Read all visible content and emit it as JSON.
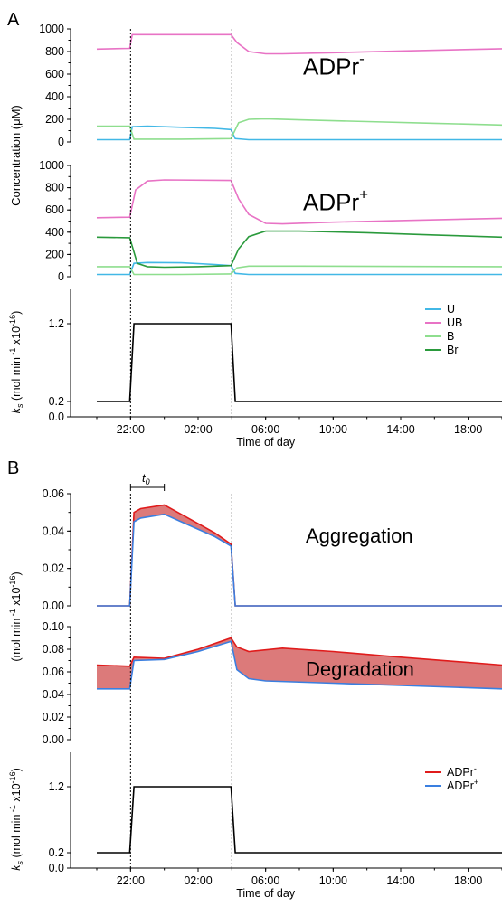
{
  "figure": {
    "panel_labels": [
      "A",
      "B"
    ],
    "x_ticks": [
      "22:00",
      "02:00",
      "06:00",
      "10:00",
      "14:00",
      "18:00"
    ],
    "x_label": "Time of day",
    "x_tick_hours": [
      22,
      26,
      30,
      34,
      38,
      42
    ],
    "x_range_hours": [
      20,
      44
    ],
    "light_on_hours": [
      22,
      28
    ]
  },
  "chart_data": [
    {
      "id": "A-ADPr-minus",
      "type": "line",
      "panel": "A",
      "annotation": {
        "base": "ADPr",
        "sup": "-"
      },
      "ylabel": "Concentration (μM)",
      "ylim": [
        0,
        1000
      ],
      "yticks": [
        0,
        200,
        400,
        600,
        800,
        1000
      ],
      "x_unit": "hour of day (values > 24 are the next day)",
      "series": [
        {
          "name": "U",
          "color": "#42b8e6",
          "points": [
            [
              20,
              20
            ],
            [
              21.95,
              20
            ],
            [
              22.1,
              135
            ],
            [
              23,
              140
            ],
            [
              25,
              130
            ],
            [
              27,
              120
            ],
            [
              27.95,
              110
            ],
            [
              28.2,
              30
            ],
            [
              29,
              20
            ],
            [
              32,
              20
            ],
            [
              38,
              20
            ],
            [
              44,
              20
            ]
          ]
        },
        {
          "name": "UB",
          "color": "#e873c5",
          "points": [
            [
              20,
              822
            ],
            [
              21.95,
              828
            ],
            [
              22.1,
              950
            ],
            [
              25,
              950
            ],
            [
              27.95,
              950
            ],
            [
              28.3,
              880
            ],
            [
              29,
              800
            ],
            [
              30,
              780
            ],
            [
              31,
              780
            ],
            [
              34,
              790
            ],
            [
              38,
              805
            ],
            [
              44,
              825
            ]
          ]
        },
        {
          "name": "B",
          "color": "#8ede8e",
          "points": [
            [
              20,
              140
            ],
            [
              21.95,
              140
            ],
            [
              22.2,
              25
            ],
            [
              25,
              25
            ],
            [
              27.95,
              30
            ],
            [
              28.4,
              170
            ],
            [
              29,
              200
            ],
            [
              30,
              205
            ],
            [
              32,
              195
            ],
            [
              36,
              180
            ],
            [
              40,
              165
            ],
            [
              44,
              150
            ]
          ]
        }
      ]
    },
    {
      "id": "A-ADPr-plus",
      "type": "line",
      "panel": "A",
      "annotation": {
        "base": "ADPr",
        "sup": "+"
      },
      "ylabel": "",
      "ylim": [
        0,
        1000
      ],
      "yticks": [
        0,
        200,
        400,
        600,
        800,
        1000
      ],
      "series": [
        {
          "name": "U",
          "color": "#42b8e6",
          "points": [
            [
              20,
              20
            ],
            [
              21.95,
              20
            ],
            [
              22.2,
              120
            ],
            [
              23,
              128
            ],
            [
              25,
              125
            ],
            [
              27,
              110
            ],
            [
              27.95,
              100
            ],
            [
              28.2,
              30
            ],
            [
              29,
              20
            ],
            [
              44,
              20
            ]
          ]
        },
        {
          "name": "UB",
          "color": "#e873c5",
          "points": [
            [
              20,
              530
            ],
            [
              21.95,
              535
            ],
            [
              22.3,
              780
            ],
            [
              23,
              860
            ],
            [
              24,
              870
            ],
            [
              27.95,
              865
            ],
            [
              28.4,
              700
            ],
            [
              29,
              560
            ],
            [
              30,
              480
            ],
            [
              31,
              475
            ],
            [
              34,
              490
            ],
            [
              38,
              505
            ],
            [
              44,
              525
            ]
          ]
        },
        {
          "name": "B",
          "color": "#8ede8e",
          "points": [
            [
              20,
              90
            ],
            [
              21.95,
              90
            ],
            [
              22.2,
              20
            ],
            [
              25,
              20
            ],
            [
              27.95,
              25
            ],
            [
              28.3,
              80
            ],
            [
              29,
              95
            ],
            [
              32,
              95
            ],
            [
              44,
              90
            ]
          ]
        },
        {
          "name": "Br",
          "color": "#2a9a3c",
          "points": [
            [
              20,
              355
            ],
            [
              21.95,
              350
            ],
            [
              22.4,
              120
            ],
            [
              23,
              90
            ],
            [
              24,
              85
            ],
            [
              26,
              90
            ],
            [
              27.95,
              100
            ],
            [
              28.4,
              250
            ],
            [
              29,
              360
            ],
            [
              30,
              410
            ],
            [
              32,
              410
            ],
            [
              36,
              395
            ],
            [
              40,
              375
            ],
            [
              44,
              355
            ]
          ]
        }
      ]
    },
    {
      "id": "A-ks",
      "type": "line",
      "panel": "A",
      "ylabel": "k_s (mol min^-1 x10^-16)",
      "yticks": [
        0.0,
        0.2,
        1.2
      ],
      "ytick_labels": [
        "0.0",
        "0.2",
        "1.2"
      ],
      "ylim": [
        0,
        1.35
      ],
      "legend": {
        "placement": "right",
        "entries": [
          "U",
          "UB",
          "B",
          "Br"
        ]
      },
      "series": [
        {
          "name": "k_s",
          "color": "#000000",
          "points": [
            [
              20,
              0.2
            ],
            [
              21.95,
              0.2
            ],
            [
              22.2,
              1.2
            ],
            [
              27.95,
              1.2
            ],
            [
              28.2,
              0.2
            ],
            [
              44,
              0.2
            ]
          ]
        }
      ]
    },
    {
      "id": "B-aggregation",
      "type": "area",
      "panel": "B",
      "annotation": "Aggregation",
      "bracket_label": "t0",
      "bracket_hours": [
        22,
        24
      ],
      "ylim": [
        0,
        0.06
      ],
      "yticks": [
        0.0,
        0.02,
        0.04,
        0.06
      ],
      "ytick_labels": [
        "0.00",
        "0.02",
        "0.04",
        "0.06"
      ],
      "series": [
        {
          "name": "ADPr-",
          "color": "#e01b1b",
          "points": [
            [
              20,
              0
            ],
            [
              21.95,
              0
            ],
            [
              22.2,
              0.05
            ],
            [
              22.6,
              0.052
            ],
            [
              24,
              0.054
            ],
            [
              25,
              0.049
            ],
            [
              27,
              0.039
            ],
            [
              27.95,
              0.033
            ],
            [
              28.2,
              0
            ],
            [
              44,
              0
            ]
          ]
        },
        {
          "name": "ADPr+",
          "color": "#3a7fe0",
          "points": [
            [
              20,
              0
            ],
            [
              21.95,
              0
            ],
            [
              22.2,
              0.045
            ],
            [
              22.6,
              0.047
            ],
            [
              24,
              0.049
            ],
            [
              25,
              0.045
            ],
            [
              27,
              0.037
            ],
            [
              27.95,
              0.032
            ],
            [
              28.2,
              0
            ],
            [
              44,
              0
            ]
          ]
        }
      ]
    },
    {
      "id": "B-degradation",
      "type": "area",
      "panel": "B",
      "annotation": "Degradation",
      "ylabel": "(mol min^-1 x10^-16)",
      "ylim": [
        0,
        0.1
      ],
      "yticks": [
        0.0,
        0.02,
        0.04,
        0.06,
        0.08,
        0.1
      ],
      "ytick_labels": [
        "0.00",
        "0.02",
        "0.04",
        "0.06",
        "0.08",
        "0.10"
      ],
      "series": [
        {
          "name": "ADPr-",
          "color": "#e01b1b",
          "points": [
            [
              20,
              0.066
            ],
            [
              21.95,
              0.065
            ],
            [
              22.2,
              0.073
            ],
            [
              24,
              0.072
            ],
            [
              26,
              0.08
            ],
            [
              27.95,
              0.09
            ],
            [
              28.3,
              0.082
            ],
            [
              29,
              0.078
            ],
            [
              31,
              0.081
            ],
            [
              34,
              0.078
            ],
            [
              38,
              0.073
            ],
            [
              44,
              0.066
            ]
          ]
        },
        {
          "name": "ADPr+",
          "color": "#3a7fe0",
          "points": [
            [
              20,
              0.045
            ],
            [
              21.95,
              0.045
            ],
            [
              22.2,
              0.07
            ],
            [
              24,
              0.071
            ],
            [
              26,
              0.078
            ],
            [
              27.95,
              0.087
            ],
            [
              28.3,
              0.062
            ],
            [
              29,
              0.054
            ],
            [
              30,
              0.052
            ],
            [
              34,
              0.05
            ],
            [
              38,
              0.048
            ],
            [
              44,
              0.045
            ]
          ]
        }
      ]
    },
    {
      "id": "B-ks",
      "type": "line",
      "panel": "B",
      "ylabel": "k_s (mol min^-1 x10^-16)",
      "yticks": [
        0.0,
        0.2,
        1.2
      ],
      "ytick_labels": [
        "0.0",
        "0.2",
        "1.2"
      ],
      "ylim": [
        0,
        1.35
      ],
      "legend": {
        "placement": "right",
        "entries": [
          "ADPr-",
          "ADPr+"
        ]
      },
      "series": [
        {
          "name": "k_s",
          "color": "#000000",
          "points": [
            [
              20,
              0.2
            ],
            [
              21.95,
              0.2
            ],
            [
              22.2,
              1.2
            ],
            [
              27.95,
              1.2
            ],
            [
              28.2,
              0.2
            ],
            [
              44,
              0.2
            ]
          ]
        }
      ]
    }
  ],
  "legends": {
    "A": [
      {
        "label": "U",
        "color": "#42b8e6"
      },
      {
        "label": "UB",
        "color": "#e873c5"
      },
      {
        "label": "B",
        "color": "#8ede8e"
      },
      {
        "label": "Br",
        "color": "#2a9a3c"
      }
    ],
    "B": [
      {
        "label_base": "ADPr",
        "label_sup": "-",
        "color": "#e01b1b"
      },
      {
        "label_base": "ADPr",
        "label_sup": "+",
        "color": "#3a7fe0"
      }
    ]
  },
  "fill_color": "#dc7a7a"
}
